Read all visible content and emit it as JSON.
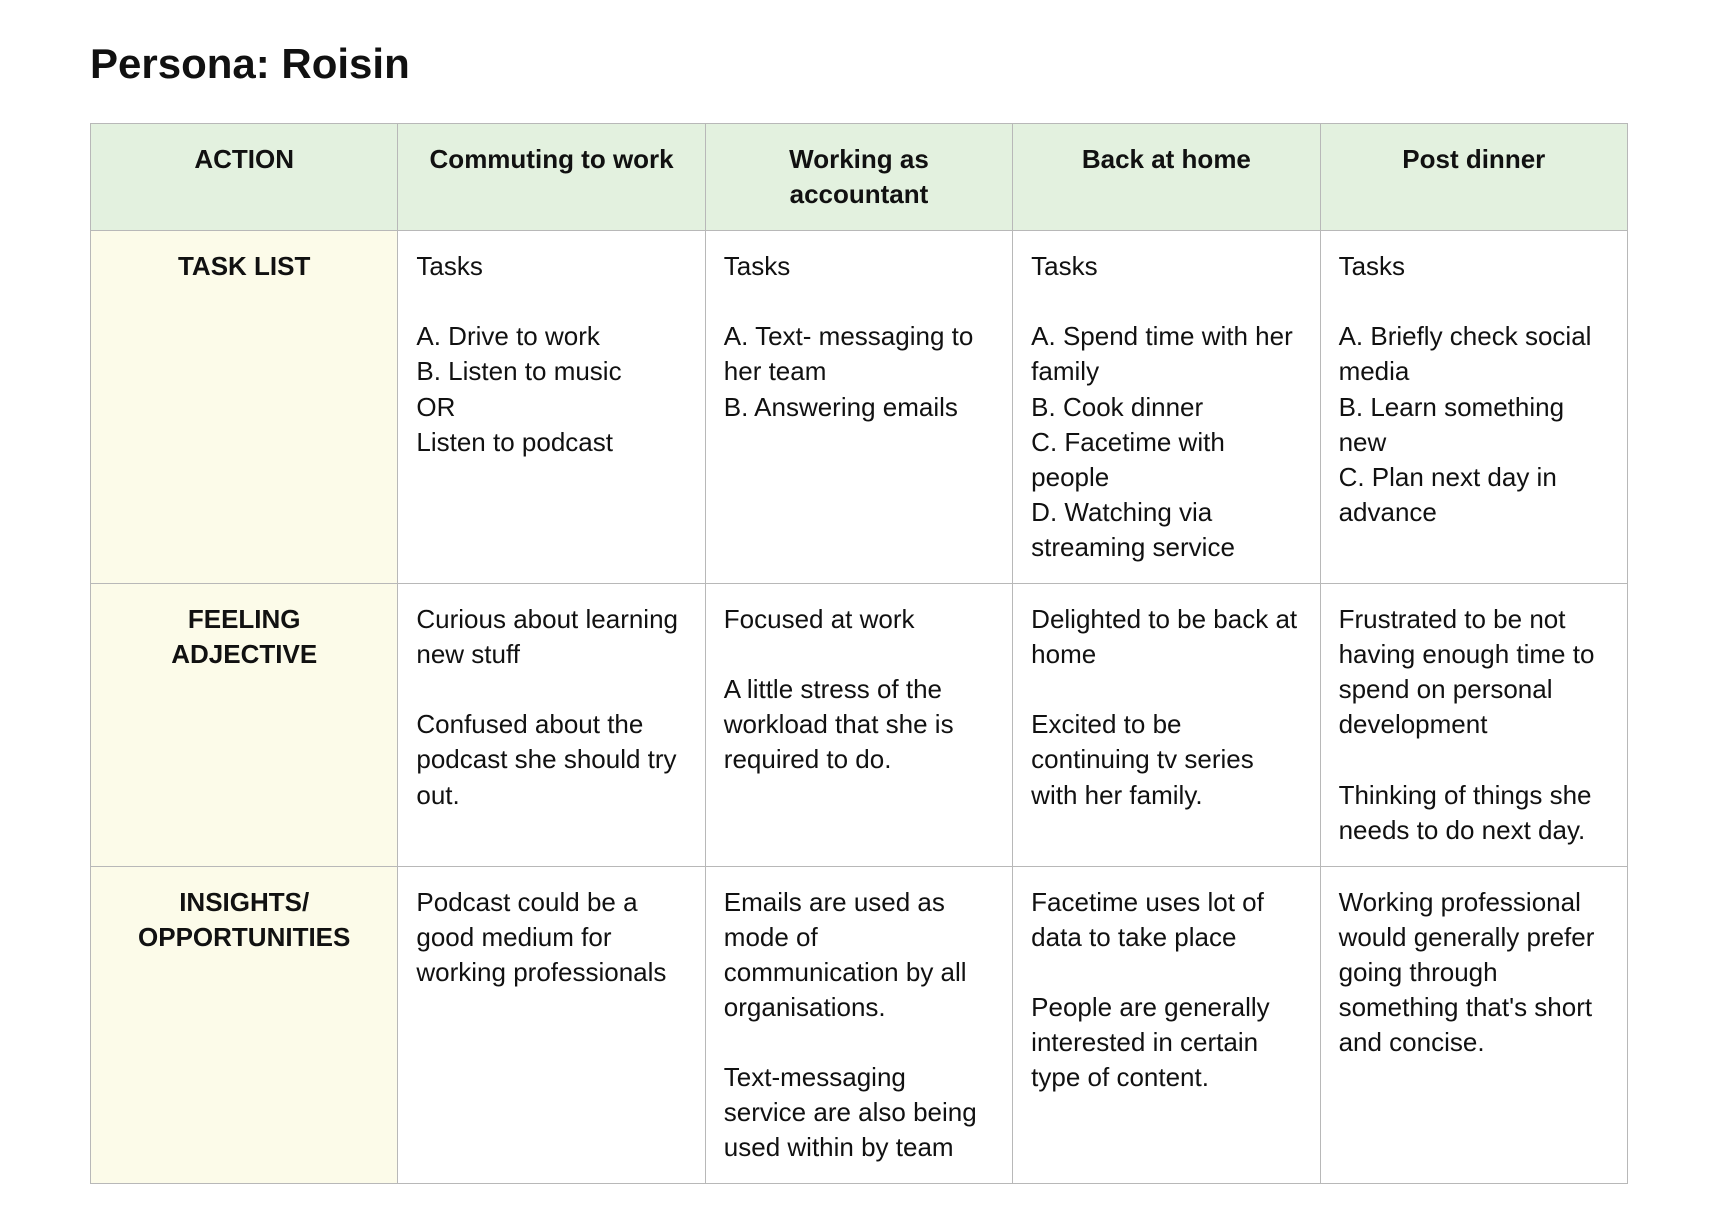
{
  "title": "Persona: Roisin",
  "colors": {
    "header_bg": "#e3f1df",
    "row_label_bg": "#fcfbe9",
    "cell_bg": "#ffffff",
    "border": "#b8b8b8",
    "text": "#111111"
  },
  "table": {
    "action_header": "ACTION",
    "phases": [
      "Commuting to work",
      "Working as\naccountant",
      "Back at home",
      "Post dinner"
    ],
    "rows": [
      {
        "label": "TASK LIST",
        "cells": [
          "Tasks\n\nA. Drive to work\nB. Listen to music\nOR\nListen to podcast",
          "Tasks\n\nA. Text- messaging to her team\nB. Answering emails",
          "Tasks\n\nA. Spend time with her family\nB. Cook dinner\nC. Facetime with people\nD. Watching via streaming service",
          "Tasks\n\nA. Briefly check social media\nB. Learn something new\nC. Plan next day in advance"
        ]
      },
      {
        "label": "FEELING\nADJECTIVE",
        "cells": [
          "Curious about learning new stuff\n\nConfused about the podcast she should try out.",
          "Focused at work\n\nA little stress of the workload that she is required to do.",
          "Delighted to be back at home\n\nExcited to be continuing tv series with her family.",
          "Frustrated to be not having enough time to spend on personal development\n\nThinking of things she needs to do next day."
        ]
      },
      {
        "label": "INSIGHTS/\nOPPORTUNITIES",
        "cells": [
          "Podcast could be a good medium for working professionals",
          "Emails are used as mode of communication by all organisations.\n\nText-messaging service are also being used within by team",
          "Facetime uses lot of data to take place\n\nPeople are generally interested in certain type of content.",
          "Working professional would generally prefer going through something that's short and concise."
        ]
      }
    ]
  }
}
